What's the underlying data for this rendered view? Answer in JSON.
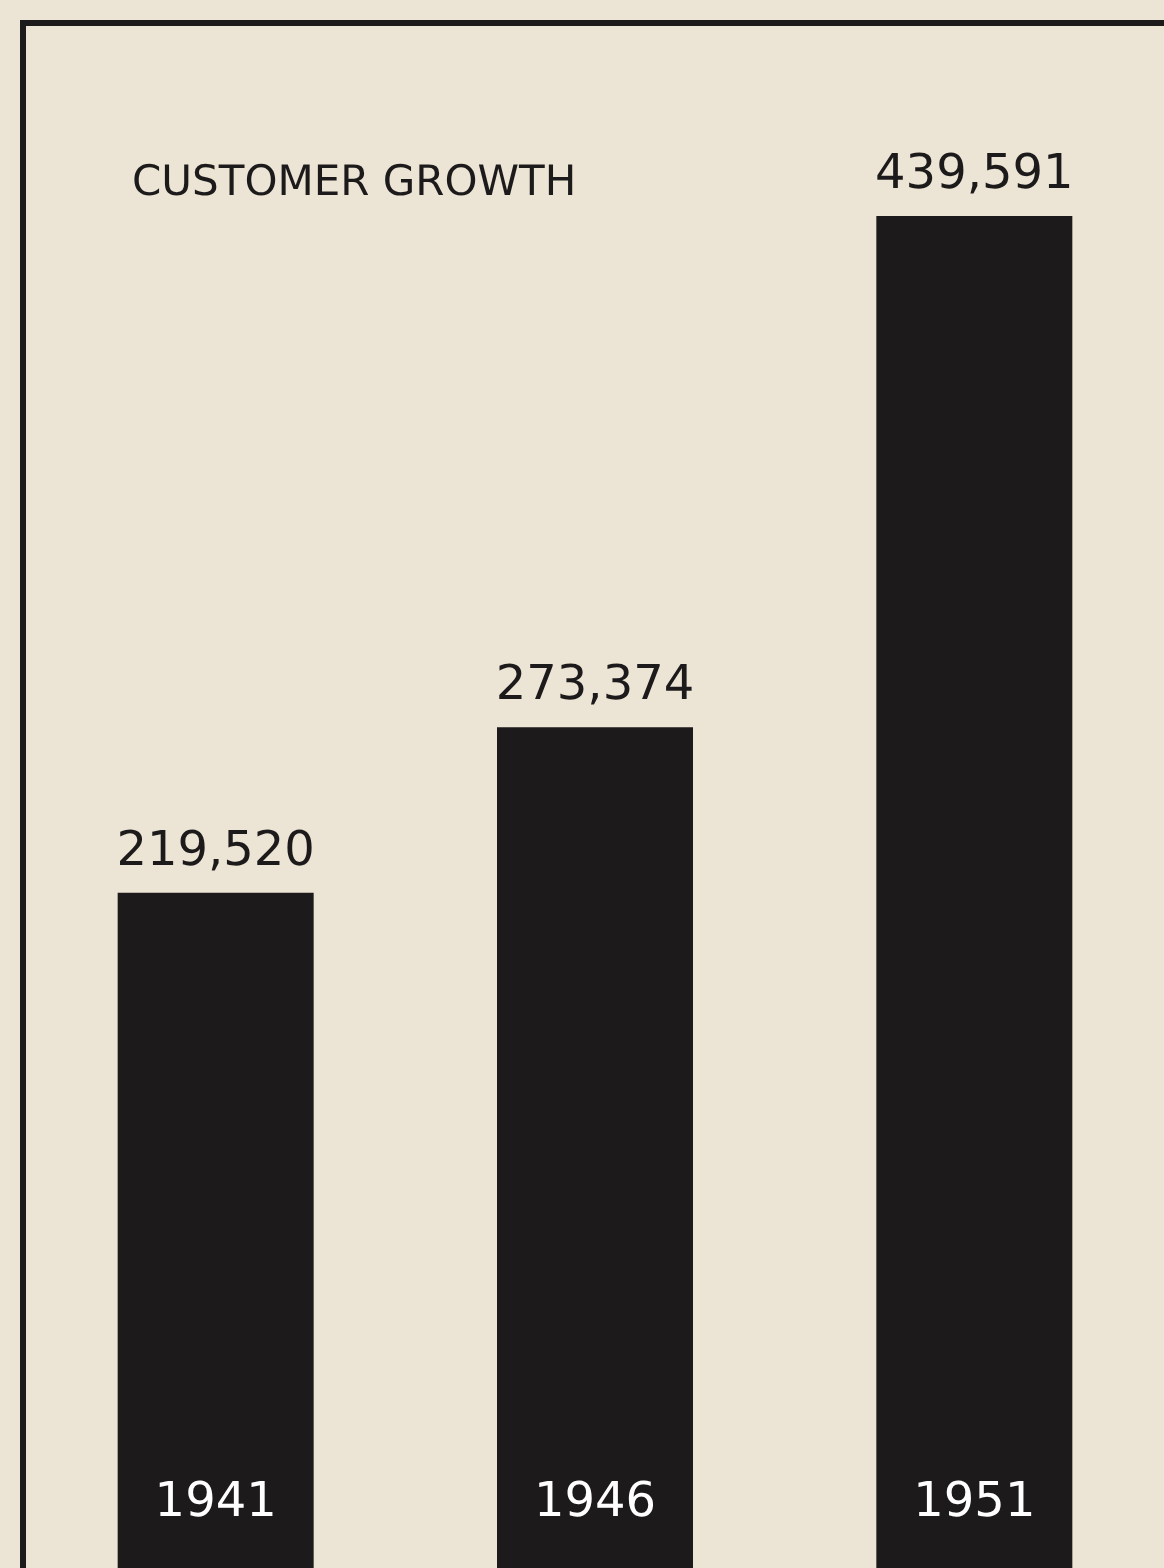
{
  "chart_data": {
    "type": "bar",
    "title": "CUSTOMER GROWTH",
    "categories": [
      "1941",
      "1946",
      "1951"
    ],
    "values": [
      219520,
      273374,
      439591
    ],
    "value_labels": [
      "219,520",
      "273,374",
      "439,591"
    ],
    "color": "#1c1a1a"
  }
}
